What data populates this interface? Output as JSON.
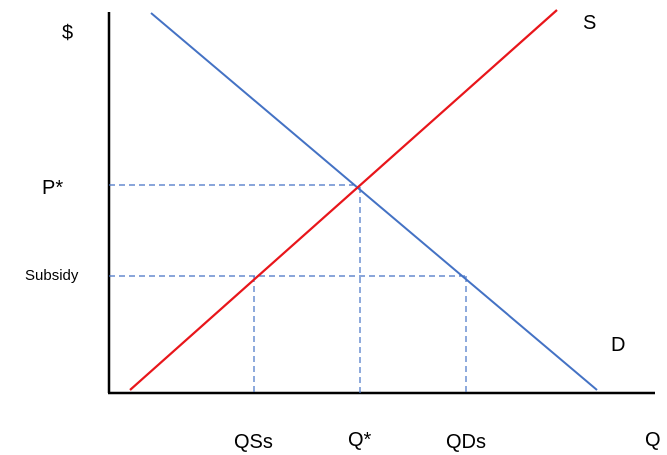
{
  "labels": {
    "y_axis": "$",
    "x_axis": "Q",
    "supply": "S",
    "demand": "D",
    "equilibrium_price": "P*",
    "subsidy_price": "Subsidy",
    "quantity_supplied": "QSs",
    "equilibrium_quantity": "Q*",
    "quantity_demanded": "QDs"
  },
  "colors": {
    "supply_line": "#e8161b",
    "demand_line": "#4472c4",
    "guide_lines": "#4472c4",
    "axes": "#000000"
  }
}
